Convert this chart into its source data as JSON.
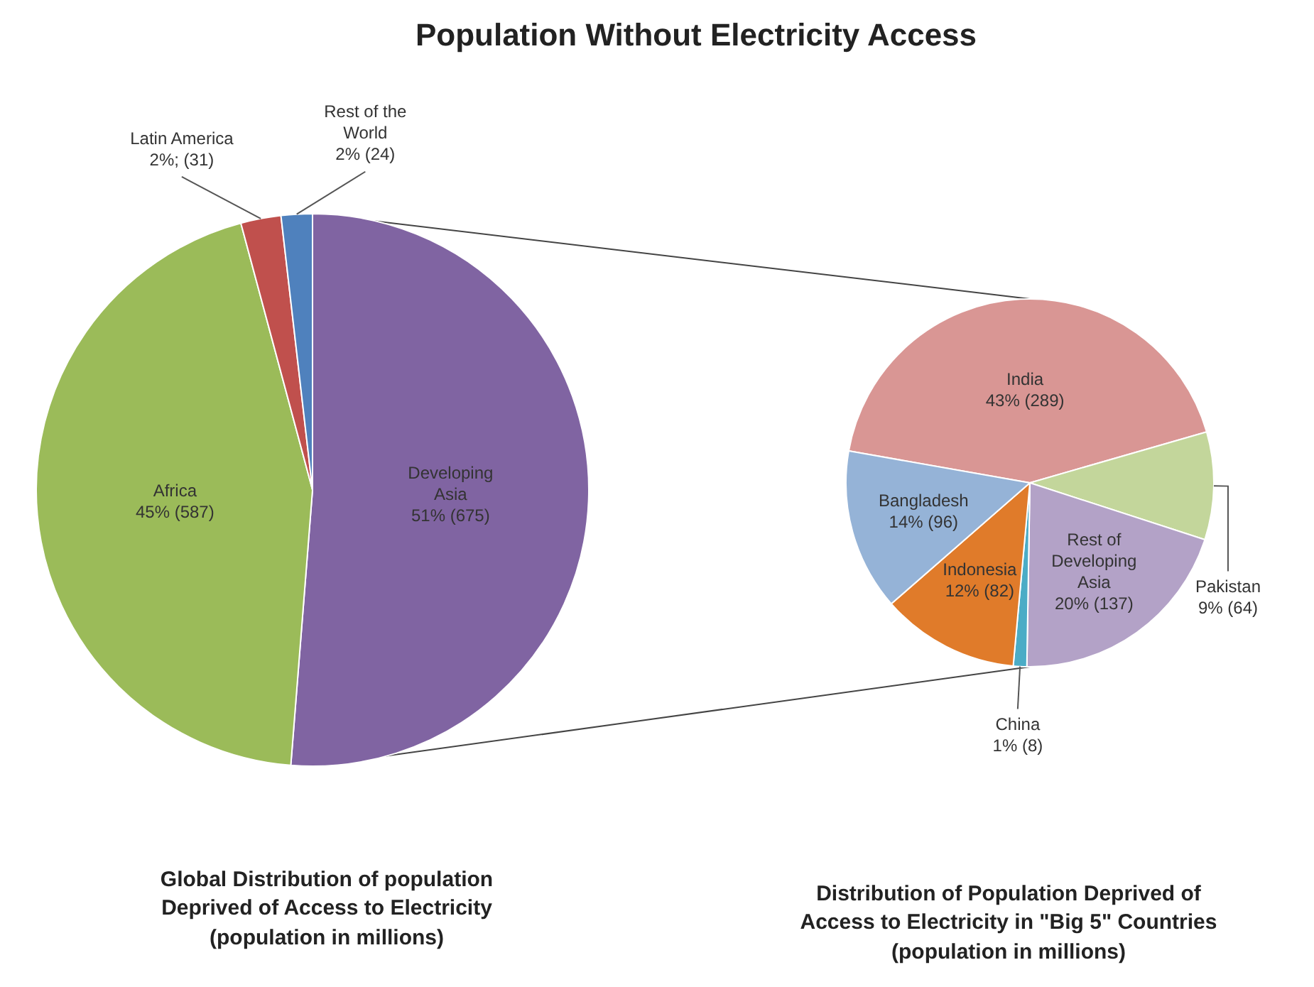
{
  "chart_data": [
    {
      "type": "pie",
      "title": "Population Without Electricity Access",
      "subtitle": "Global Distribution of population Deprived of Access to Electricity (population in millions)",
      "categories": [
        "Developing Asia",
        "Africa",
        "Latin America",
        "Rest of the World"
      ],
      "values": [
        675,
        587,
        31,
        24
      ],
      "value_labels": [
        "51% (675)",
        "45% (587)",
        "2%; (31)",
        "2% (24)"
      ],
      "colors": [
        "#8064a2",
        "#9bbb59",
        "#c0504d",
        "#4f81bd"
      ]
    },
    {
      "type": "pie",
      "subtitle": "Distribution of Population Deprived of Access to Electricity in \"Big 5\" Countries (population in millions)",
      "categories": [
        "India",
        "Pakistan",
        "Rest of Developing Asia",
        "China",
        "Indonesia",
        "Bangladesh"
      ],
      "values": [
        289,
        64,
        137,
        8,
        82,
        96
      ],
      "value_labels": [
        "43% (289)",
        "9% (64)",
        "20% (137)",
        "1% (8)",
        "12% (82)",
        "14% (96)"
      ],
      "colors": [
        "#d99694",
        "#c3d69b",
        "#b3a2c7",
        "#4bacc6",
        "#e07b2a",
        "#95b3d7"
      ]
    }
  ]
}
